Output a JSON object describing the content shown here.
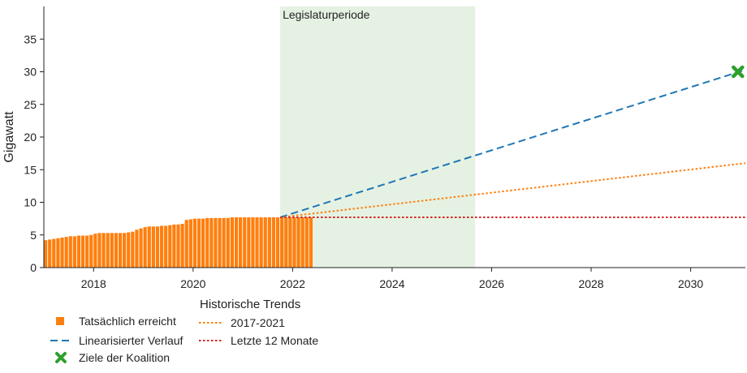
{
  "chart_data": {
    "type": "bar",
    "title": "",
    "xlabel": "",
    "ylabel": "Gigawatt",
    "xlim": [
      2017.0,
      2031.1
    ],
    "ylim": [
      0,
      40
    ],
    "x_ticks": [
      2018,
      2020,
      2022,
      2024,
      2026,
      2028,
      2030
    ],
    "y_ticks": [
      0,
      5,
      10,
      15,
      20,
      25,
      30,
      35
    ],
    "grid": false,
    "legislature": {
      "label": "Legislaturperiode",
      "start": 2021.75,
      "end": 2025.67
    },
    "actual": {
      "name": "Tatsächlich erreicht",
      "color": "#ff7f0e",
      "monthly_values": [
        4.2,
        4.3,
        4.4,
        4.5,
        4.6,
        4.7,
        4.8,
        4.8,
        4.9,
        4.9,
        4.9,
        5.0,
        5.2,
        5.3,
        5.3,
        5.3,
        5.3,
        5.3,
        5.3,
        5.3,
        5.4,
        5.5,
        5.8,
        6.0,
        6.2,
        6.3,
        6.3,
        6.3,
        6.4,
        6.4,
        6.5,
        6.6,
        6.6,
        6.7,
        7.3,
        7.4,
        7.5,
        7.5,
        7.5,
        7.6,
        7.6,
        7.6,
        7.6,
        7.6,
        7.6,
        7.7,
        7.7,
        7.7,
        7.7,
        7.7,
        7.7,
        7.7,
        7.7,
        7.7,
        7.7,
        7.7,
        7.7,
        7.7,
        7.7,
        7.7,
        7.7,
        7.7,
        7.7,
        7.7,
        7.7
      ],
      "start": 2017.0
    },
    "trend_group_title": "Historische Trends",
    "lines": [
      {
        "name": "Linearisierter Verlauf",
        "color": "#1f77b4",
        "style": "dashed",
        "x": [
          2021.75,
          2031.1
        ],
        "y": [
          7.7,
          30.3
        ]
      },
      {
        "name": "2017-2021",
        "color": "#ff7f0e",
        "style": "dotted",
        "x": [
          2021.75,
          2031.1
        ],
        "y": [
          7.7,
          16.0
        ]
      },
      {
        "name": "Letzte 12 Monate",
        "color": "#d62728",
        "style": "dotted",
        "x": [
          2021.75,
          2031.1
        ],
        "y": [
          7.7,
          7.7
        ]
      }
    ],
    "target": {
      "name": "Ziele der Koalition",
      "color": "#2ca02c",
      "x": 2030.95,
      "y": 30
    },
    "legend_placement": "bottom-left"
  }
}
